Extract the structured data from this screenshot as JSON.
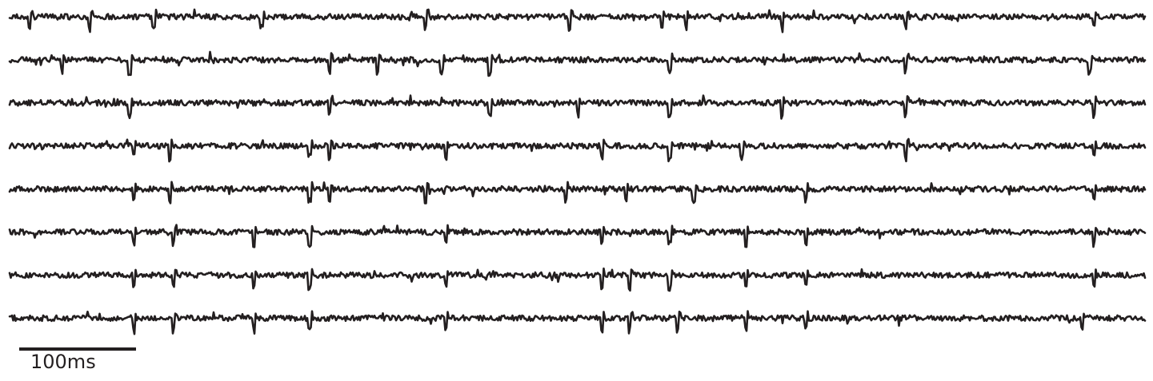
{
  "chart_data": {
    "type": "line",
    "title": "",
    "xlabel": "",
    "ylabel": "",
    "trace_color": "#231f20",
    "channel_count": 8,
    "grid": false,
    "legend": false,
    "scalebar": {
      "length_ms": 100,
      "label": "100ms"
    },
    "series": [
      {
        "spikes": [
          25,
          100,
          180,
          315,
          520,
          700,
          815,
          845,
          965,
          1120,
          1355
        ]
      },
      {
        "spikes": [
          65,
          150,
          400,
          460,
          540,
          600,
          825,
          1120,
          1350
        ]
      },
      {
        "spikes": [
          150,
          400,
          600,
          710,
          825,
          965,
          1120,
          1355
        ]
      },
      {
        "spikes": [
          155,
          200,
          375,
          400,
          545,
          740,
          825,
          915,
          1120,
          1355
        ]
      },
      {
        "spikes": [
          155,
          200,
          375,
          400,
          520,
          695,
          770,
          855,
          995,
          1355
        ]
      },
      {
        "spikes": [
          155,
          205,
          305,
          375,
          545,
          740,
          825,
          920,
          995,
          1355
        ]
      },
      {
        "spikes": [
          155,
          205,
          305,
          375,
          545,
          740,
          775,
          825,
          920,
          995,
          1355
        ]
      },
      {
        "spikes": [
          155,
          205,
          305,
          375,
          545,
          740,
          775,
          835,
          920,
          995,
          1340
        ]
      }
    ]
  }
}
